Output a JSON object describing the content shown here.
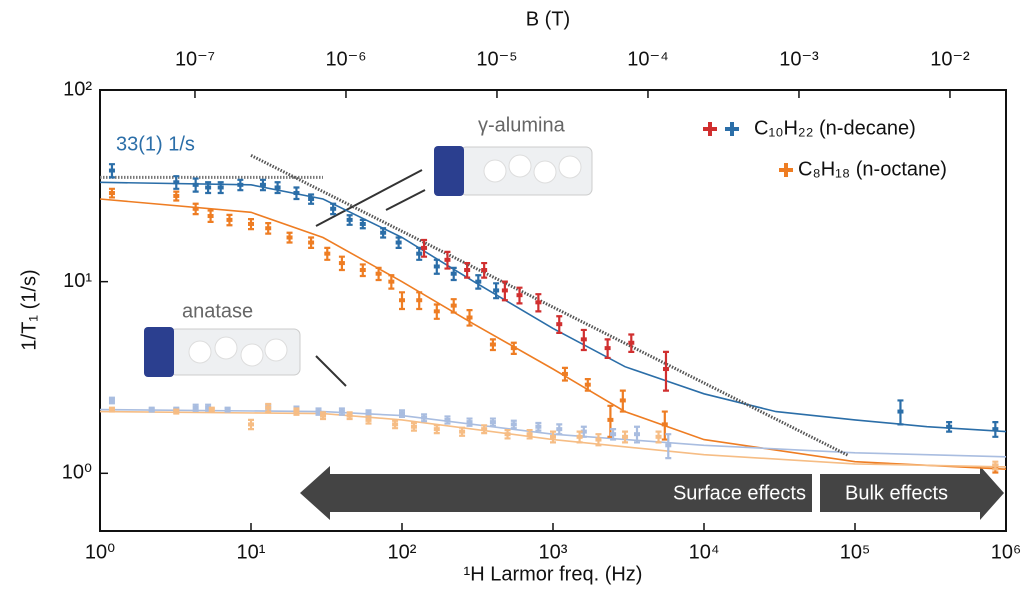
{
  "chart_data": {
    "type": "scatter",
    "x_label": "¹H Larmor freq. (Hz)",
    "x2_label": "B (T)",
    "y_label": "1/T₁ (1/s)",
    "xlog": true,
    "ylog": true,
    "xlim": [
      1,
      1000000
    ],
    "ylim": [
      0.5,
      100
    ],
    "x2lim": [
      2.35e-08,
      0.0235
    ],
    "xticks": [
      {
        "value": 1,
        "label": "10⁰"
      },
      {
        "value": 10,
        "label": "10¹"
      },
      {
        "value": 100,
        "label": "10²"
      },
      {
        "value": 1000,
        "label": "10³"
      },
      {
        "value": 10000,
        "label": "10⁴"
      },
      {
        "value": 100000,
        "label": "10⁵"
      },
      {
        "value": 1000000,
        "label": "10⁶"
      }
    ],
    "yticks": [
      {
        "value": 1,
        "label": "10⁰"
      },
      {
        "value": 10,
        "label": "10¹"
      },
      {
        "value": 100,
        "label": "10²"
      }
    ],
    "x2ticks": [
      {
        "value": 1e-07,
        "label": "10⁻⁷"
      },
      {
        "value": 1e-06,
        "label": "10⁻⁶"
      },
      {
        "value": 1e-05,
        "label": "10⁻⁵"
      },
      {
        "value": 0.0001,
        "label": "10⁻⁴"
      },
      {
        "value": 0.001,
        "label": "10⁻³"
      },
      {
        "value": 0.01,
        "label": "10⁻²"
      }
    ],
    "series": [
      {
        "color": "#2b6ea8",
        "x": [
          1.2,
          3.2,
          4.3,
          5.2,
          6.3,
          8.5,
          12,
          15,
          20,
          25,
          35,
          45,
          55,
          75,
          95,
          130,
          170,
          220,
          320,
          420,
          200000,
          420000,
          850000
        ],
        "values": [
          38,
          33,
          32,
          31,
          31,
          32,
          32,
          31,
          29,
          27,
          24,
          21,
          20,
          18,
          16,
          14,
          12,
          11,
          10,
          9,
          2.1,
          1.75,
          1.7
        ],
        "errors": [
          3,
          2.5,
          2.5,
          2,
          2,
          2,
          2,
          2,
          2,
          1.5,
          1.5,
          1.2,
          1,
          1,
          1,
          1,
          1,
          0.8,
          0.8,
          0.8,
          0.3,
          0.1,
          0.15
        ]
      },
      {
        "color": "#d02f2f",
        "x": [
          140,
          200,
          270,
          350,
          480,
          600,
          800,
          1100,
          1600,
          2300,
          3300,
          5600
        ],
        "values": [
          15,
          13,
          11.5,
          11.5,
          9,
          8.5,
          7.8,
          6,
          5,
          4.5,
          4.8,
          3.5
        ],
        "errors": [
          1.5,
          1.3,
          1,
          1,
          1,
          0.8,
          0.8,
          0.6,
          0.6,
          0.5,
          0.5,
          0.8
        ]
      },
      {
        "color": "#ee7d23",
        "x": [
          1.2,
          3.2,
          4.3,
          5.4,
          7.2,
          10,
          13,
          18,
          25,
          32,
          40,
          55,
          70,
          85,
          100,
          130,
          170,
          220,
          280,
          400,
          550,
          1200,
          1700,
          2400,
          2900,
          5500,
          850000
        ],
        "values": [
          29,
          28,
          24,
          22,
          21,
          20,
          19,
          17,
          16,
          14,
          12.5,
          11.5,
          11,
          10,
          8,
          8,
          7,
          7.5,
          6.5,
          4.7,
          4.5,
          3.3,
          2.9,
          1.9,
          2.4,
          1.8,
          1.06
        ],
        "errors": [
          1.5,
          1.5,
          1.5,
          1.5,
          1.3,
          1.2,
          1.2,
          1,
          1,
          1,
          1,
          0.8,
          0.8,
          0.8,
          0.8,
          0.8,
          0.6,
          0.6,
          0.6,
          0.3,
          0.3,
          0.25,
          0.2,
          0.35,
          0.3,
          0.3,
          0.05
        ]
      },
      {
        "color": "#a9bde0",
        "x": [
          1.2,
          2.2,
          3.2,
          4.3,
          5.2,
          7,
          13,
          20,
          28,
          40,
          60,
          100,
          140,
          200,
          280,
          400,
          550,
          800,
          1100,
          1600,
          2500,
          3600,
          5800
        ],
        "values": [
          2.4,
          2.15,
          2.15,
          2.2,
          2.2,
          2.15,
          2.2,
          2.15,
          2.1,
          2.1,
          2.05,
          2.05,
          1.95,
          1.9,
          1.85,
          1.85,
          1.8,
          1.75,
          1.7,
          1.65,
          1.6,
          1.6,
          1.4
        ],
        "errors": [
          0.08,
          0.05,
          0.05,
          0.08,
          0.08,
          0.05,
          0.08,
          0.08,
          0.08,
          0.08,
          0.08,
          0.08,
          0.08,
          0.08,
          0.08,
          0.08,
          0.08,
          0.08,
          0.1,
          0.1,
          0.1,
          0.15,
          0.2
        ]
      },
      {
        "color": "#f6bd85",
        "x": [
          1.2,
          3.2,
          5.5,
          10,
          13,
          20,
          30,
          45,
          60,
          90,
          120,
          170,
          250,
          350,
          500,
          700,
          1000,
          1500,
          2000,
          3000,
          5000,
          850000
        ],
        "values": [
          2.15,
          2.1,
          2.15,
          1.8,
          2.2,
          2.1,
          2.0,
          2.0,
          1.9,
          1.8,
          1.75,
          1.7,
          1.65,
          1.7,
          1.6,
          1.6,
          1.55,
          1.55,
          1.5,
          1.55,
          1.55,
          1.1
        ],
        "errors": [
          0.05,
          0.05,
          0.05,
          0.1,
          0.1,
          0.08,
          0.08,
          0.08,
          0.08,
          0.08,
          0.08,
          0.08,
          0.08,
          0.08,
          0.08,
          0.08,
          0.1,
          0.1,
          0.1,
          0.1,
          0.1,
          0.05
        ]
      }
    ],
    "fits": [
      {
        "color": "#2b6ea8",
        "x": [
          1,
          10,
          30,
          100,
          300,
          1000,
          3000,
          10000,
          30000,
          100000,
          300000,
          1000000
        ],
        "values": [
          33,
          32,
          27,
          17,
          10,
          5.7,
          3.6,
          2.6,
          2.1,
          1.9,
          1.75,
          1.65
        ]
      },
      {
        "color": "#ee7d23",
        "x": [
          1,
          10,
          30,
          100,
          300,
          1000,
          3000,
          10000,
          100000,
          1000000
        ],
        "values": [
          27,
          23,
          17,
          10,
          6,
          3.5,
          2.1,
          1.5,
          1.15,
          1.05
        ]
      },
      {
        "color": "#a9bde0",
        "x": [
          1,
          30,
          100,
          1000,
          10000,
          100000,
          1000000
        ],
        "values": [
          2.15,
          2.1,
          2.0,
          1.6,
          1.4,
          1.28,
          1.22
        ]
      },
      {
        "color": "#f6bd85",
        "x": [
          1,
          30,
          100,
          1000,
          10000,
          100000,
          1000000
        ],
        "values": [
          2.1,
          2.05,
          1.9,
          1.5,
          1.25,
          1.12,
          1.08
        ]
      }
    ],
    "guides": [
      {
        "color": "#777777",
        "x": [
          1,
          30
        ],
        "values": [
          35,
          35
        ]
      },
      {
        "color": "#555555",
        "x": [
          10,
          90000
        ],
        "values": [
          45.6,
          1.24
        ]
      }
    ],
    "legend": [
      {
        "label": "C₁₀H₂₂ (n-decane)",
        "colors": [
          "#d02f2f",
          "#2b6ea8"
        ]
      },
      {
        "label": "C₈H₁₈ (n-octane)",
        "colors": [
          "#ee7d23"
        ]
      }
    ],
    "annotations": {
      "rate": "33(1) 1/s",
      "alumina": "γ-alumina",
      "anatase": "anatase",
      "surface": "Surface effects",
      "bulk": "Bulk effects"
    }
  }
}
